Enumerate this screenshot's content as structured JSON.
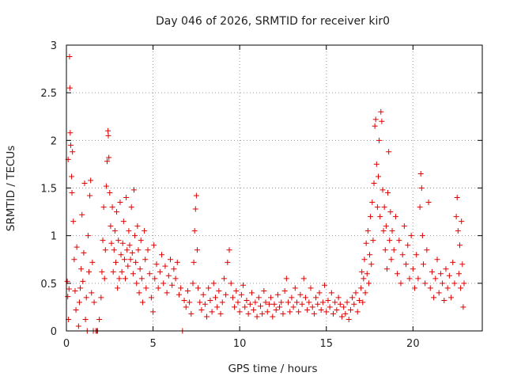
{
  "chart_data": {
    "type": "scatter",
    "title": "Day 046 of 2026, SRMTID for receiver kir0",
    "xlabel": "GPS time / hours",
    "ylabel": "SRMTID / TECUs",
    "xlim": [
      0,
      24
    ],
    "ylim": [
      0,
      3
    ],
    "x_ticks": [
      0,
      5,
      10,
      15,
      20
    ],
    "y_ticks": [
      0,
      0.5,
      1,
      1.5,
      2,
      2.5,
      3
    ],
    "x_tick_labels": [
      "0",
      "5",
      "10",
      "15",
      "20"
    ],
    "y_tick_labels": [
      "0",
      "0.5",
      "1",
      "1.5",
      "2",
      "2.5",
      "3"
    ],
    "grid": true,
    "marker": "+",
    "color": "#e00000",
    "series": [
      {
        "name": "SRMTID",
        "points": [
          [
            0.05,
            0.52
          ],
          [
            0.08,
            0.36
          ],
          [
            0.1,
            1.8
          ],
          [
            0.12,
            0.12
          ],
          [
            0.15,
            0.44
          ],
          [
            0.18,
            2.88
          ],
          [
            0.2,
            2.55
          ],
          [
            0.22,
            2.08
          ],
          [
            0.25,
            1.95
          ],
          [
            0.3,
            1.62
          ],
          [
            0.32,
            1.45
          ],
          [
            0.35,
            1.88
          ],
          [
            0.4,
            1.15
          ],
          [
            0.45,
            0.75
          ],
          [
            0.5,
            0.42
          ],
          [
            0.55,
            0.22
          ],
          [
            0.6,
            0.88
          ],
          [
            0.7,
            0.05
          ],
          [
            0.75,
            0.3
          ],
          [
            0.8,
            0.45
          ],
          [
            0.85,
            0.65
          ],
          [
            0.9,
            1.22
          ],
          [
            0.95,
            0.52
          ],
          [
            1.0,
            0.82
          ],
          [
            1.05,
            1.55
          ],
          [
            1.1,
            0.12
          ],
          [
            1.15,
            0.35
          ],
          [
            1.2,
            0.0
          ],
          [
            1.25,
            1.0
          ],
          [
            1.3,
            0.62
          ],
          [
            1.35,
            1.42
          ],
          [
            1.4,
            1.58
          ],
          [
            1.45,
            0.4
          ],
          [
            1.5,
            0.72
          ],
          [
            1.55,
            0.0
          ],
          [
            1.6,
            0.3
          ],
          [
            1.7,
            0.0
          ],
          [
            1.75,
            0.0
          ],
          [
            1.8,
            0.0
          ],
          [
            1.9,
            0.12
          ],
          [
            2.0,
            0.35
          ],
          [
            2.05,
            0.62
          ],
          [
            2.1,
            0.95
          ],
          [
            2.15,
            1.3
          ],
          [
            2.2,
            0.55
          ],
          [
            2.25,
            0.85
          ],
          [
            2.3,
            1.52
          ],
          [
            2.35,
            1.78
          ],
          [
            2.4,
            2.1
          ],
          [
            2.42,
            2.05
          ],
          [
            2.45,
            1.82
          ],
          [
            2.5,
            1.45
          ],
          [
            2.55,
            1.1
          ],
          [
            2.6,
            0.92
          ],
          [
            2.65,
            1.3
          ],
          [
            2.7,
            0.62
          ],
          [
            2.75,
            0.85
          ],
          [
            2.8,
            1.05
          ],
          [
            2.85,
            0.72
          ],
          [
            2.9,
            1.25
          ],
          [
            2.95,
            0.45
          ],
          [
            3.0,
            0.95
          ],
          [
            3.05,
            0.55
          ],
          [
            3.1,
            1.35
          ],
          [
            3.15,
            0.8
          ],
          [
            3.2,
            0.62
          ],
          [
            3.25,
            0.92
          ],
          [
            3.3,
            1.15
          ],
          [
            3.35,
            0.75
          ],
          [
            3.4,
            0.55
          ],
          [
            3.45,
            1.4
          ],
          [
            3.5,
            0.85
          ],
          [
            3.55,
            0.68
          ],
          [
            3.6,
            1.05
          ],
          [
            3.65,
            0.9
          ],
          [
            3.7,
            0.75
          ],
          [
            3.75,
            1.3
          ],
          [
            3.8,
            0.82
          ],
          [
            3.85,
            0.6
          ],
          [
            3.9,
            1.48
          ],
          [
            3.95,
            1.0
          ],
          [
            4.0,
            0.72
          ],
          [
            4.05,
            0.5
          ],
          [
            4.1,
            1.1
          ],
          [
            4.15,
            0.85
          ],
          [
            4.2,
            0.4
          ],
          [
            4.25,
            0.65
          ],
          [
            4.3,
            0.95
          ],
          [
            4.35,
            0.55
          ],
          [
            4.4,
            0.3
          ],
          [
            4.5,
            1.05
          ],
          [
            4.55,
            0.75
          ],
          [
            4.6,
            0.45
          ],
          [
            4.7,
            0.85
          ],
          [
            4.8,
            0.6
          ],
          [
            4.9,
            0.35
          ],
          [
            5.0,
            0.2
          ],
          [
            5.05,
            0.9
          ],
          [
            5.1,
            0.55
          ],
          [
            5.2,
            0.7
          ],
          [
            5.3,
            0.45
          ],
          [
            5.4,
            0.62
          ],
          [
            5.5,
            0.8
          ],
          [
            5.6,
            0.5
          ],
          [
            5.7,
            0.68
          ],
          [
            5.8,
            0.4
          ],
          [
            5.9,
            0.58
          ],
          [
            6.0,
            0.75
          ],
          [
            6.1,
            0.48
          ],
          [
            6.2,
            0.65
          ],
          [
            6.3,
            0.55
          ],
          [
            6.4,
            0.72
          ],
          [
            6.5,
            0.38
          ],
          [
            6.6,
            0.45
          ],
          [
            6.7,
            0.0
          ],
          [
            6.8,
            0.32
          ],
          [
            6.9,
            0.25
          ],
          [
            7.0,
            0.42
          ],
          [
            7.1,
            0.3
          ],
          [
            7.2,
            0.18
          ],
          [
            7.3,
            0.5
          ],
          [
            7.35,
            0.72
          ],
          [
            7.4,
            1.05
          ],
          [
            7.45,
            1.28
          ],
          [
            7.5,
            1.42
          ],
          [
            7.55,
            0.85
          ],
          [
            7.6,
            0.45
          ],
          [
            7.7,
            0.3
          ],
          [
            7.8,
            0.22
          ],
          [
            7.9,
            0.38
          ],
          [
            8.0,
            0.28
          ],
          [
            8.1,
            0.15
          ],
          [
            8.2,
            0.45
          ],
          [
            8.3,
            0.32
          ],
          [
            8.4,
            0.2
          ],
          [
            8.5,
            0.5
          ],
          [
            8.6,
            0.35
          ],
          [
            8.7,
            0.25
          ],
          [
            8.8,
            0.42
          ],
          [
            8.9,
            0.18
          ],
          [
            9.0,
            0.3
          ],
          [
            9.1,
            0.55
          ],
          [
            9.2,
            0.38
          ],
          [
            9.3,
            0.72
          ],
          [
            9.4,
            0.85
          ],
          [
            9.5,
            0.5
          ],
          [
            9.6,
            0.35
          ],
          [
            9.7,
            0.25
          ],
          [
            9.8,
            0.42
          ],
          [
            9.9,
            0.3
          ],
          [
            10.0,
            0.2
          ],
          [
            10.1,
            0.38
          ],
          [
            10.2,
            0.48
          ],
          [
            10.3,
            0.25
          ],
          [
            10.4,
            0.32
          ],
          [
            10.5,
            0.18
          ],
          [
            10.6,
            0.28
          ],
          [
            10.7,
            0.4
          ],
          [
            10.8,
            0.22
          ],
          [
            10.9,
            0.3
          ],
          [
            11.0,
            0.15
          ],
          [
            11.1,
            0.35
          ],
          [
            11.2,
            0.26
          ],
          [
            11.3,
            0.18
          ],
          [
            11.4,
            0.42
          ],
          [
            11.5,
            0.3
          ],
          [
            11.6,
            0.2
          ],
          [
            11.7,
            0.28
          ],
          [
            11.8,
            0.35
          ],
          [
            11.9,
            0.15
          ],
          [
            12.0,
            0.28
          ],
          [
            12.1,
            0.22
          ],
          [
            12.2,
            0.38
          ],
          [
            12.3,
            0.25
          ],
          [
            12.4,
            0.3
          ],
          [
            12.5,
            0.18
          ],
          [
            12.6,
            0.42
          ],
          [
            12.7,
            0.55
          ],
          [
            12.8,
            0.3
          ],
          [
            12.9,
            0.2
          ],
          [
            13.0,
            0.35
          ],
          [
            13.1,
            0.25
          ],
          [
            13.2,
            0.45
          ],
          [
            13.3,
            0.3
          ],
          [
            13.4,
            0.2
          ],
          [
            13.5,
            0.38
          ],
          [
            13.6,
            0.28
          ],
          [
            13.7,
            0.55
          ],
          [
            13.8,
            0.35
          ],
          [
            13.9,
            0.22
          ],
          [
            14.0,
            0.3
          ],
          [
            14.1,
            0.45
          ],
          [
            14.2,
            0.25
          ],
          [
            14.3,
            0.18
          ],
          [
            14.4,
            0.35
          ],
          [
            14.5,
            0.28
          ],
          [
            14.6,
            0.4
          ],
          [
            14.7,
            0.22
          ],
          [
            14.8,
            0.3
          ],
          [
            14.9,
            0.48
          ],
          [
            15.0,
            0.2
          ],
          [
            15.1,
            0.32
          ],
          [
            15.2,
            0.25
          ],
          [
            15.3,
            0.4
          ],
          [
            15.4,
            0.18
          ],
          [
            15.5,
            0.3
          ],
          [
            15.6,
            0.22
          ],
          [
            15.7,
            0.35
          ],
          [
            15.8,
            0.28
          ],
          [
            15.9,
            0.15
          ],
          [
            16.0,
            0.25
          ],
          [
            16.1,
            0.18
          ],
          [
            16.2,
            0.3
          ],
          [
            16.3,
            0.12
          ],
          [
            16.4,
            0.22
          ],
          [
            16.5,
            0.35
          ],
          [
            16.6,
            0.28
          ],
          [
            16.7,
            0.4
          ],
          [
            16.8,
            0.2
          ],
          [
            16.9,
            0.32
          ],
          [
            17.0,
            0.45
          ],
          [
            17.05,
            0.62
          ],
          [
            17.1,
            0.3
          ],
          [
            17.15,
            0.55
          ],
          [
            17.2,
            0.75
          ],
          [
            17.25,
            0.4
          ],
          [
            17.3,
            0.92
          ],
          [
            17.35,
            0.6
          ],
          [
            17.4,
            1.05
          ],
          [
            17.45,
            0.5
          ],
          [
            17.5,
            0.8
          ],
          [
            17.55,
            1.2
          ],
          [
            17.6,
            0.7
          ],
          [
            17.65,
            1.35
          ],
          [
            17.7,
            0.95
          ],
          [
            17.75,
            1.55
          ],
          [
            17.8,
            2.15
          ],
          [
            17.85,
            2.22
          ],
          [
            17.9,
            1.75
          ],
          [
            17.95,
            1.3
          ],
          [
            18.0,
            1.62
          ],
          [
            18.05,
            2.0
          ],
          [
            18.1,
            1.2
          ],
          [
            18.15,
            2.3
          ],
          [
            18.2,
            2.2
          ],
          [
            18.25,
            1.48
          ],
          [
            18.3,
            1.05
          ],
          [
            18.35,
            1.3
          ],
          [
            18.4,
            0.85
          ],
          [
            18.45,
            1.1
          ],
          [
            18.5,
            0.65
          ],
          [
            18.55,
            1.45
          ],
          [
            18.6,
            1.88
          ],
          [
            18.65,
            0.95
          ],
          [
            18.7,
            1.25
          ],
          [
            18.75,
            0.75
          ],
          [
            18.8,
            1.05
          ],
          [
            18.9,
            0.85
          ],
          [
            19.0,
            1.2
          ],
          [
            19.1,
            0.6
          ],
          [
            19.2,
            0.95
          ],
          [
            19.3,
            0.5
          ],
          [
            19.4,
            0.8
          ],
          [
            19.5,
            1.1
          ],
          [
            19.6,
            0.7
          ],
          [
            19.7,
            0.9
          ],
          [
            19.8,
            0.55
          ],
          [
            19.9,
            1.0
          ],
          [
            20.0,
            0.65
          ],
          [
            20.1,
            0.45
          ],
          [
            20.2,
            0.8
          ],
          [
            20.3,
            0.55
          ],
          [
            20.4,
            1.3
          ],
          [
            20.45,
            1.65
          ],
          [
            20.5,
            1.5
          ],
          [
            20.55,
            1.0
          ],
          [
            20.6,
            0.7
          ],
          [
            20.7,
            0.5
          ],
          [
            20.8,
            0.85
          ],
          [
            20.9,
            1.35
          ],
          [
            21.0,
            0.45
          ],
          [
            21.1,
            0.62
          ],
          [
            21.2,
            0.35
          ],
          [
            21.3,
            0.55
          ],
          [
            21.4,
            0.75
          ],
          [
            21.5,
            0.4
          ],
          [
            21.6,
            0.6
          ],
          [
            21.7,
            0.5
          ],
          [
            21.8,
            0.32
          ],
          [
            21.9,
            0.65
          ],
          [
            22.0,
            0.45
          ],
          [
            22.1,
            0.58
          ],
          [
            22.2,
            0.35
          ],
          [
            22.3,
            0.72
          ],
          [
            22.4,
            0.5
          ],
          [
            22.5,
            1.2
          ],
          [
            22.55,
            1.4
          ],
          [
            22.6,
            1.05
          ],
          [
            22.65,
            0.6
          ],
          [
            22.7,
            0.9
          ],
          [
            22.75,
            0.45
          ],
          [
            22.8,
            1.15
          ],
          [
            22.85,
            0.7
          ],
          [
            22.9,
            0.25
          ],
          [
            22.95,
            0.5
          ]
        ]
      }
    ]
  }
}
